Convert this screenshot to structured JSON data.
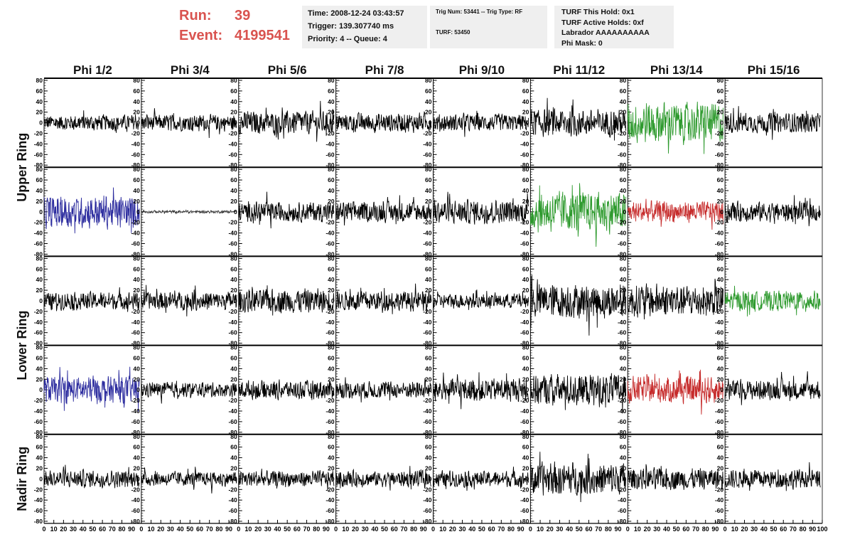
{
  "header": {
    "run_label": "Run:",
    "run_value": "39",
    "event_label": "Event:",
    "event_value": "4199541"
  },
  "info": {
    "time": "Time: 2008-12-24 03:43:57",
    "trigger": "Trigger: 139.307740 ms",
    "priority": "Priority: 4 -- Queue: 4",
    "trig_num": "Trig Num: 53441 -- Trig Type: RF",
    "turf": "TURF: 53450",
    "turf_hold": "TURF This Hold: 0x1",
    "turf_active": "TURF Active Holds: 0xf",
    "labrador": "Labrador AAAAAAAAAA",
    "phi_mask": "Phi Mask: 0"
  },
  "chart_data": {
    "type": "line",
    "columns": [
      "Phi 1/2",
      "Phi 3/4",
      "Phi 5/6",
      "Phi 7/8",
      "Phi 9/10",
      "Phi 11/12",
      "Phi 13/14",
      "Phi 15/16"
    ],
    "ring_labels": [
      {
        "text": "Upper Ring",
        "rows": [
          0,
          1
        ]
      },
      {
        "text": "Lower Ring",
        "rows": [
          2,
          3
        ]
      },
      {
        "text": "Nadir Ring",
        "rows": [
          4
        ]
      }
    ],
    "ylim": [
      -80,
      80
    ],
    "yticks": [
      80,
      60,
      40,
      20,
      0,
      -20,
      -40,
      -60,
      -80
    ],
    "xlim": [
      0,
      100
    ],
    "xtick_labels": [
      "0",
      "10",
      "20",
      "30",
      "40",
      "50",
      "60",
      "70",
      "80",
      "90",
      "100"
    ],
    "series_colors": {
      "normal": "#000000",
      "blue": "#2b2b9e",
      "green": "#2e9a2e",
      "red": "#c62b2b",
      "gray": "#333333"
    },
    "panels": [
      [
        {
          "color": "normal",
          "amplitude": 12
        },
        {
          "color": "normal",
          "amplitude": 12
        },
        {
          "color": "normal",
          "amplitude": 17
        },
        {
          "color": "normal",
          "amplitude": 14
        },
        {
          "color": "normal",
          "amplitude": 13
        },
        {
          "color": "normal",
          "amplitude": 20
        },
        {
          "color": "green",
          "amplitude": 30
        },
        {
          "color": "normal",
          "amplitude": 15
        }
      ],
      [
        {
          "color": "blue",
          "amplitude": 24
        },
        {
          "color": "gray",
          "amplitude": 2
        },
        {
          "color": "normal",
          "amplitude": 15
        },
        {
          "color": "normal",
          "amplitude": 15
        },
        {
          "color": "normal",
          "amplitude": 18
        },
        {
          "color": "green",
          "amplitude": 30
        },
        {
          "color": "red",
          "amplitude": 16
        },
        {
          "color": "normal",
          "amplitude": 15
        }
      ],
      [
        {
          "color": "normal",
          "amplitude": 13
        },
        {
          "color": "normal",
          "amplitude": 14
        },
        {
          "color": "normal",
          "amplitude": 18
        },
        {
          "color": "normal",
          "amplitude": 15
        },
        {
          "color": "normal",
          "amplitude": 11
        },
        {
          "color": "normal",
          "amplitude": 26
        },
        {
          "color": "normal",
          "amplitude": 24
        },
        {
          "color": "green",
          "amplitude": 15
        }
      ],
      [
        {
          "color": "blue",
          "amplitude": 20
        },
        {
          "color": "normal",
          "amplitude": 11
        },
        {
          "color": "normal",
          "amplitude": 14
        },
        {
          "color": "normal",
          "amplitude": 13
        },
        {
          "color": "normal",
          "amplitude": 17
        },
        {
          "color": "normal",
          "amplitude": 24
        },
        {
          "color": "red",
          "amplitude": 20
        },
        {
          "color": "normal",
          "amplitude": 15
        }
      ],
      [
        {
          "color": "normal",
          "amplitude": 13
        },
        {
          "color": "normal",
          "amplitude": 11
        },
        {
          "color": "normal",
          "amplitude": 12
        },
        {
          "color": "normal",
          "amplitude": 12
        },
        {
          "color": "normal",
          "amplitude": 12
        },
        {
          "color": "normal",
          "amplitude": 24
        },
        {
          "color": "normal",
          "amplitude": 16
        },
        {
          "color": "normal",
          "amplitude": 14
        }
      ]
    ]
  }
}
